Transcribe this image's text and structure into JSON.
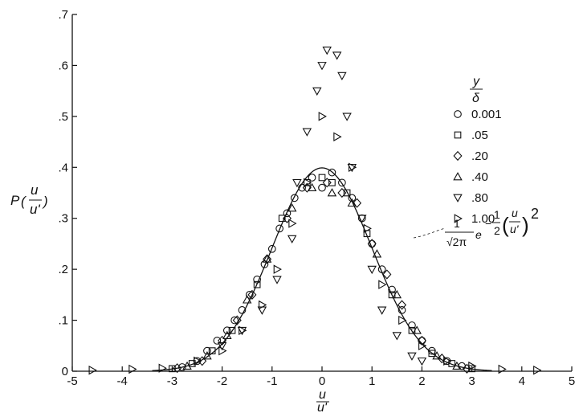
{
  "chart_data": {
    "type": "scatter",
    "xlim": [
      -5,
      5
    ],
    "ylim": [
      0,
      0.7
    ],
    "x_ticks": [
      "-5",
      "-4",
      "-3",
      "-2",
      "-1",
      "0",
      "1",
      "2",
      "3",
      "4",
      "5"
    ],
    "y_ticks": [
      "0",
      ".1",
      ".2",
      ".3",
      ".4",
      ".5",
      ".6",
      ".7"
    ],
    "ylabel": {
      "prefix": "P",
      "num": "u",
      "den": "u'"
    },
    "xlabel": {
      "num": "u",
      "den": "u'"
    },
    "legend": {
      "title_num": "y",
      "title_den": "δ",
      "placement": "upper right"
    },
    "annotation": {
      "num": "1",
      "den": "√2π",
      "e": "e",
      "exponent_sign": "−",
      "exponent_half_num": "1",
      "exponent_half_den": "2",
      "exponent_frac_num": "u",
      "exponent_frac_den": "u'",
      "power": "2"
    },
    "curve": {
      "type": "gaussian",
      "mean": 0,
      "std": 1,
      "label": "1/√(2π) e^(−½(u/u')²)"
    },
    "series": [
      {
        "name": "0.001",
        "marker": "circle",
        "x": [
          -2.8,
          -2.5,
          -2.3,
          -2.1,
          -1.9,
          -1.75,
          -1.6,
          -1.45,
          -1.3,
          -1.15,
          -1.0,
          -0.85,
          -0.7,
          -0.55,
          -0.4,
          -0.2,
          0.0,
          0.2,
          0.4,
          0.6,
          0.8,
          1.0,
          1.2,
          1.4,
          1.6,
          1.8,
          2.0,
          2.2,
          2.5,
          2.8
        ],
        "y": [
          0.008,
          0.02,
          0.04,
          0.06,
          0.08,
          0.1,
          0.12,
          0.15,
          0.18,
          0.21,
          0.24,
          0.28,
          0.31,
          0.34,
          0.36,
          0.38,
          0.36,
          0.39,
          0.37,
          0.34,
          0.3,
          0.25,
          0.2,
          0.16,
          0.12,
          0.09,
          0.06,
          0.04,
          0.02,
          0.01
        ]
      },
      {
        "name": ".05",
        "marker": "square",
        "x": [
          -3.0,
          -2.6,
          -2.2,
          -1.8,
          -1.3,
          -0.8,
          -0.3,
          0.0,
          0.2,
          0.5,
          0.9,
          1.4,
          1.8,
          2.2,
          2.6,
          3.0
        ],
        "y": [
          0.005,
          0.015,
          0.04,
          0.08,
          0.17,
          0.3,
          0.37,
          0.38,
          0.37,
          0.35,
          0.27,
          0.15,
          0.08,
          0.035,
          0.015,
          0.005
        ]
      },
      {
        "name": ".20",
        "marker": "diamond",
        "x": [
          -2.9,
          -2.4,
          -2.0,
          -1.7,
          -1.4,
          -1.1,
          -0.7,
          -0.3,
          0.1,
          0.4,
          0.7,
          1.0,
          1.3,
          1.6,
          2.0,
          2.4,
          2.9
        ],
        "y": [
          0.006,
          0.02,
          0.06,
          0.1,
          0.15,
          0.22,
          0.3,
          0.36,
          0.37,
          0.35,
          0.33,
          0.25,
          0.19,
          0.13,
          0.06,
          0.025,
          0.005
        ]
      },
      {
        "name": ".40",
        "marker": "triangle-up",
        "x": [
          -2.7,
          -2.3,
          -1.9,
          -1.5,
          -1.1,
          -0.6,
          -0.2,
          0.2,
          0.6,
          1.1,
          1.5,
          1.9,
          2.3,
          2.7
        ],
        "y": [
          0.01,
          0.03,
          0.07,
          0.14,
          0.22,
          0.32,
          0.36,
          0.35,
          0.33,
          0.23,
          0.15,
          0.08,
          0.03,
          0.01
        ]
      },
      {
        "name": ".80",
        "marker": "triangle-down",
        "x": [
          -2.0,
          -1.6,
          -1.2,
          -0.9,
          -0.6,
          -0.5,
          -0.3,
          -0.1,
          0.0,
          0.1,
          0.3,
          0.4,
          0.5,
          0.6,
          0.8,
          1.0,
          1.2,
          1.5,
          1.8,
          2.0
        ],
        "y": [
          0.05,
          0.08,
          0.12,
          0.18,
          0.26,
          0.37,
          0.47,
          0.55,
          0.6,
          0.63,
          0.62,
          0.58,
          0.5,
          0.4,
          0.3,
          0.2,
          0.12,
          0.07,
          0.03,
          0.02
        ]
      },
      {
        "name": "1.00",
        "marker": "triangle-right",
        "x": [
          -4.6,
          -3.8,
          -3.2,
          -2.5,
          -2.0,
          -1.6,
          -1.2,
          -0.9,
          -0.6,
          -0.3,
          0.0,
          0.3,
          0.6,
          0.9,
          1.2,
          1.6,
          2.0,
          2.5,
          3.0,
          3.6,
          4.3
        ],
        "y": [
          0.002,
          0.004,
          0.006,
          0.02,
          0.04,
          0.08,
          0.13,
          0.2,
          0.29,
          0.37,
          0.5,
          0.46,
          0.4,
          0.28,
          0.17,
          0.1,
          0.05,
          0.02,
          0.01,
          0.004,
          0.002
        ]
      }
    ]
  }
}
